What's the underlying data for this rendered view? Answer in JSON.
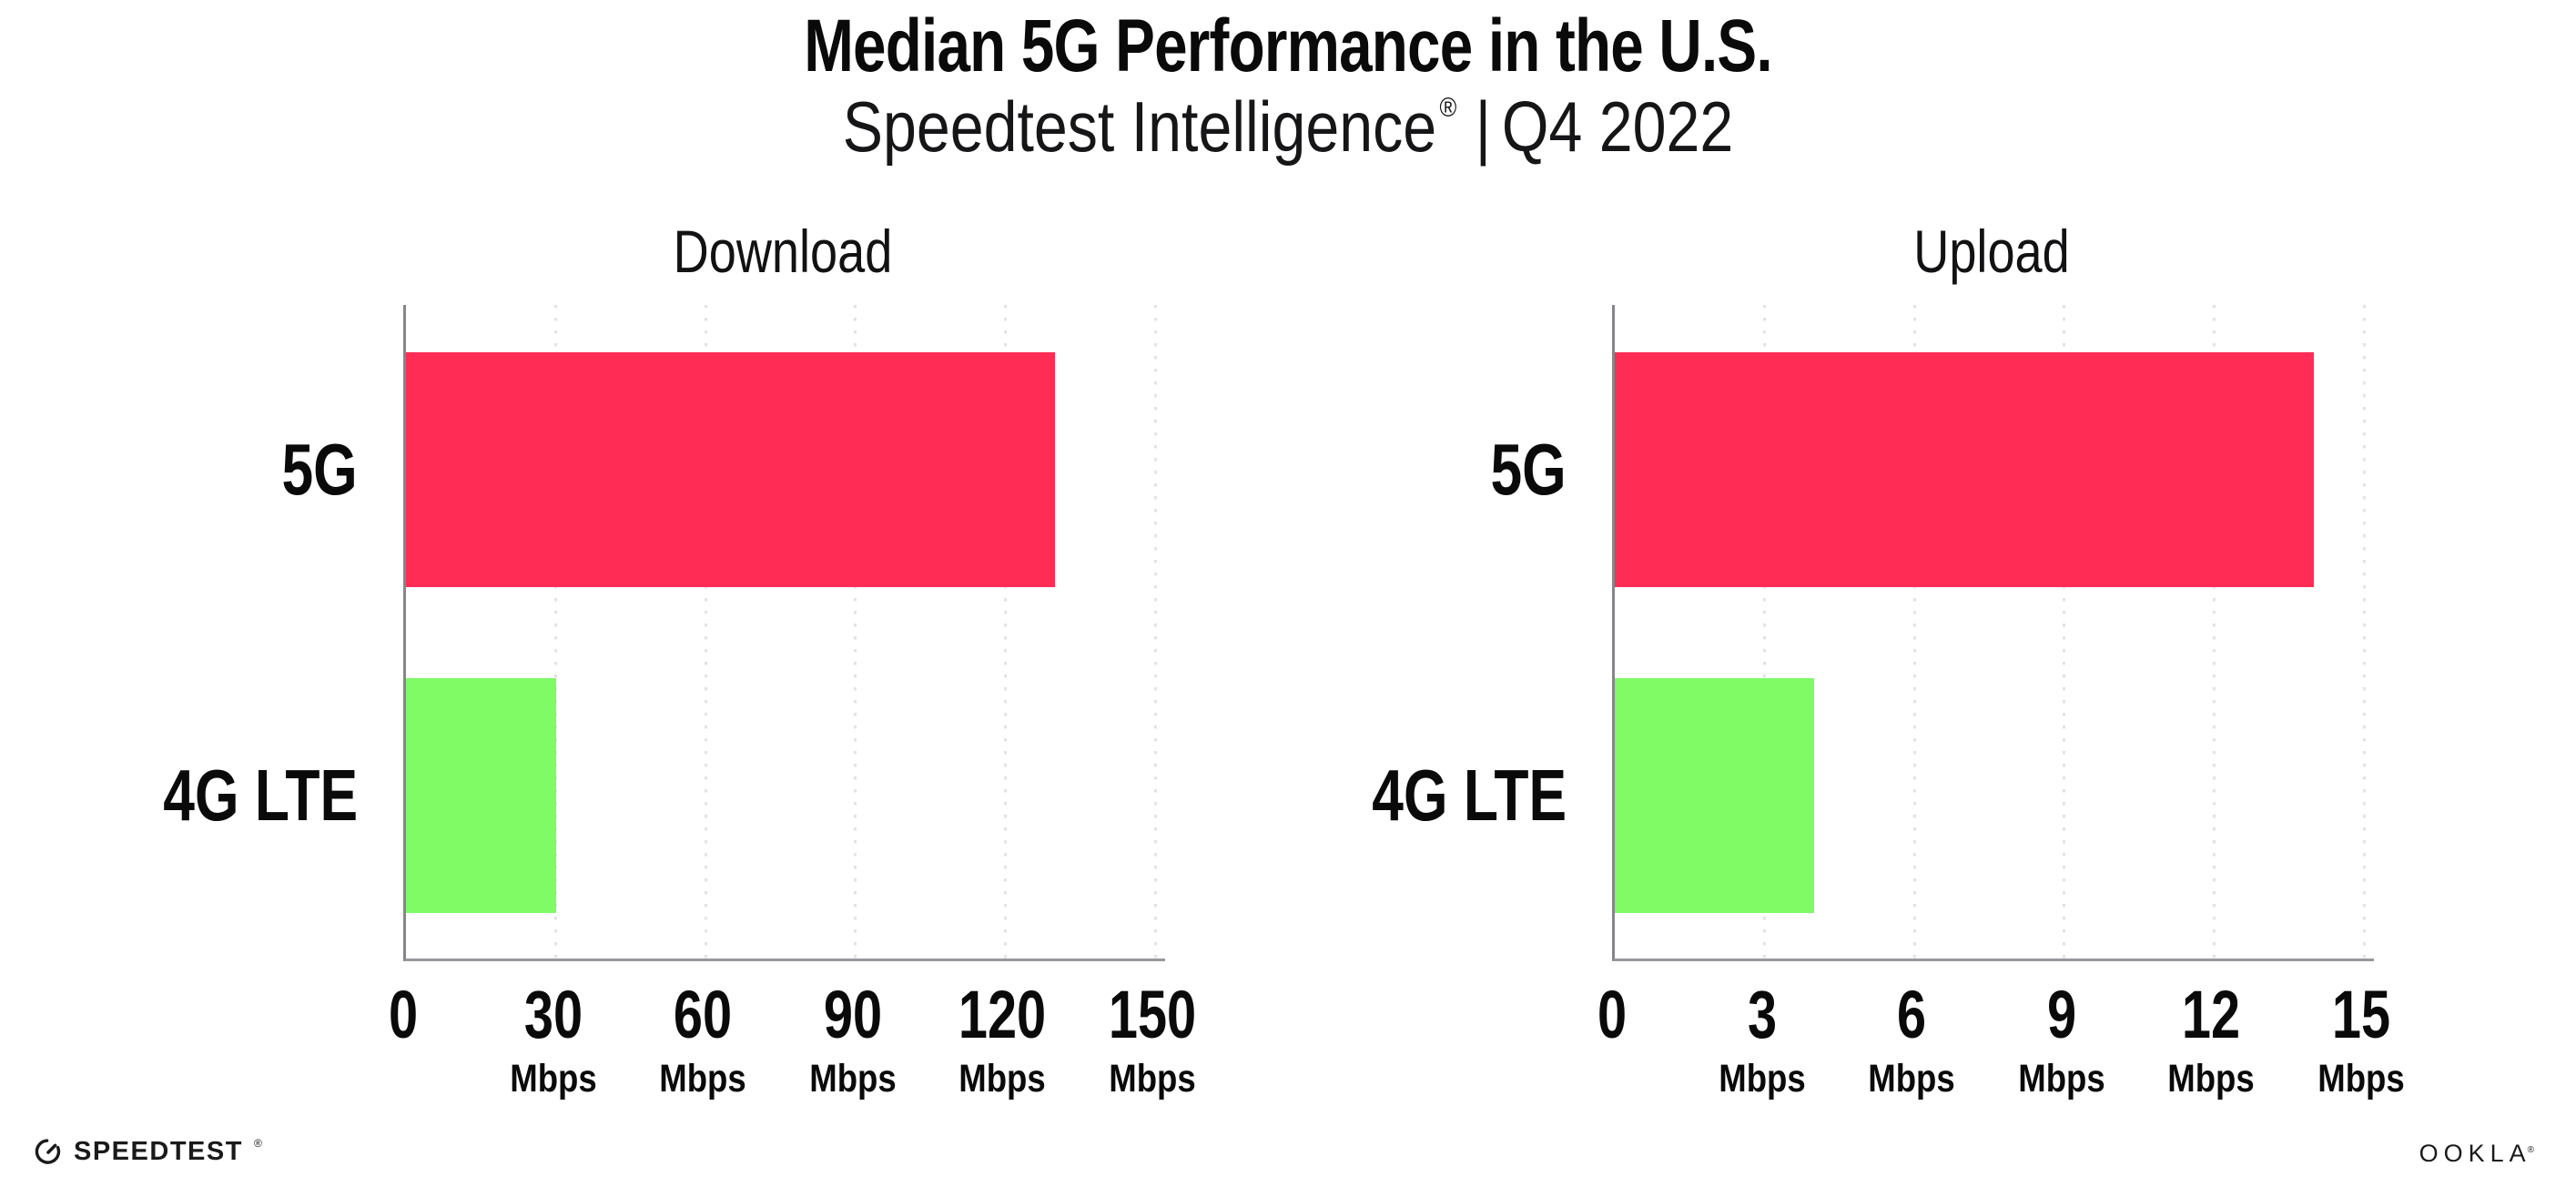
{
  "header": {
    "title": "Median 5G Performance in the U.S.",
    "subtitle_brand": "Speedtest Intelligence",
    "subtitle_reg": "®",
    "subtitle_sep": "|",
    "subtitle_period": "Q4 2022"
  },
  "chart_data": [
    {
      "type": "bar",
      "orientation": "horizontal",
      "title": "Download",
      "categories": [
        "5G",
        "4G LTE"
      ],
      "values": [
        130,
        30
      ],
      "unit": "Mbps",
      "xticks": [
        0,
        30,
        60,
        90,
        120,
        150
      ],
      "xlim": [
        0,
        152
      ],
      "bar_colors": [
        "#FF2D55",
        "#80FB66"
      ],
      "grid": "vertical-dotted",
      "legend": "none"
    },
    {
      "type": "bar",
      "orientation": "horizontal",
      "title": "Upload",
      "categories": [
        "5G",
        "4G LTE"
      ],
      "values": [
        14,
        4
      ],
      "unit": "Mbps",
      "xticks": [
        0,
        3,
        6,
        9,
        12,
        15
      ],
      "xlim": [
        0,
        15.2
      ],
      "bar_colors": [
        "#FF2D55",
        "#80FB66"
      ],
      "grid": "vertical-dotted",
      "legend": "none"
    }
  ],
  "footer": {
    "speedtest_label": "SPEEDTEST",
    "speedtest_mark": "®",
    "ookla_label": "OOKLA",
    "ookla_mark": "®"
  },
  "colors": {
    "bar_5g": "#FF2D55",
    "bar_4g_lte": "#80FB66",
    "gridline": "#E3E2E9",
    "axis": "#85858B",
    "text": "#0A0A0A"
  }
}
